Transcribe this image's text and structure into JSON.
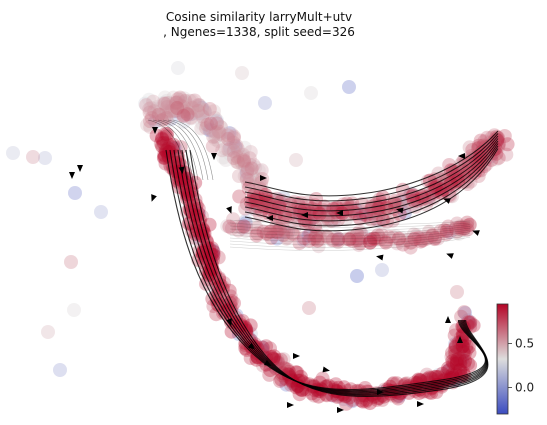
{
  "chart_data": {
    "type": "scatter",
    "title_lines": [
      "Cosine similarity larryMult+utv",
      ", Ngenes=1338, split seed=326"
    ],
    "xlabel": "",
    "ylabel": "",
    "axes_visible": false,
    "grid": false,
    "overlay": "velocity streamlines",
    "colorbar": {
      "cmap": "coolwarm",
      "vmin": -0.3,
      "vmax": 0.95,
      "ticks": [
        0.0,
        0.5
      ],
      "tick_labels": [
        "0.0",
        "0.5"
      ],
      "placement": "right"
    },
    "colors": {
      "low": "#3b4cc0",
      "mid": "#dddddd",
      "high": "#b40426",
      "streamline": "#000000"
    }
  }
}
